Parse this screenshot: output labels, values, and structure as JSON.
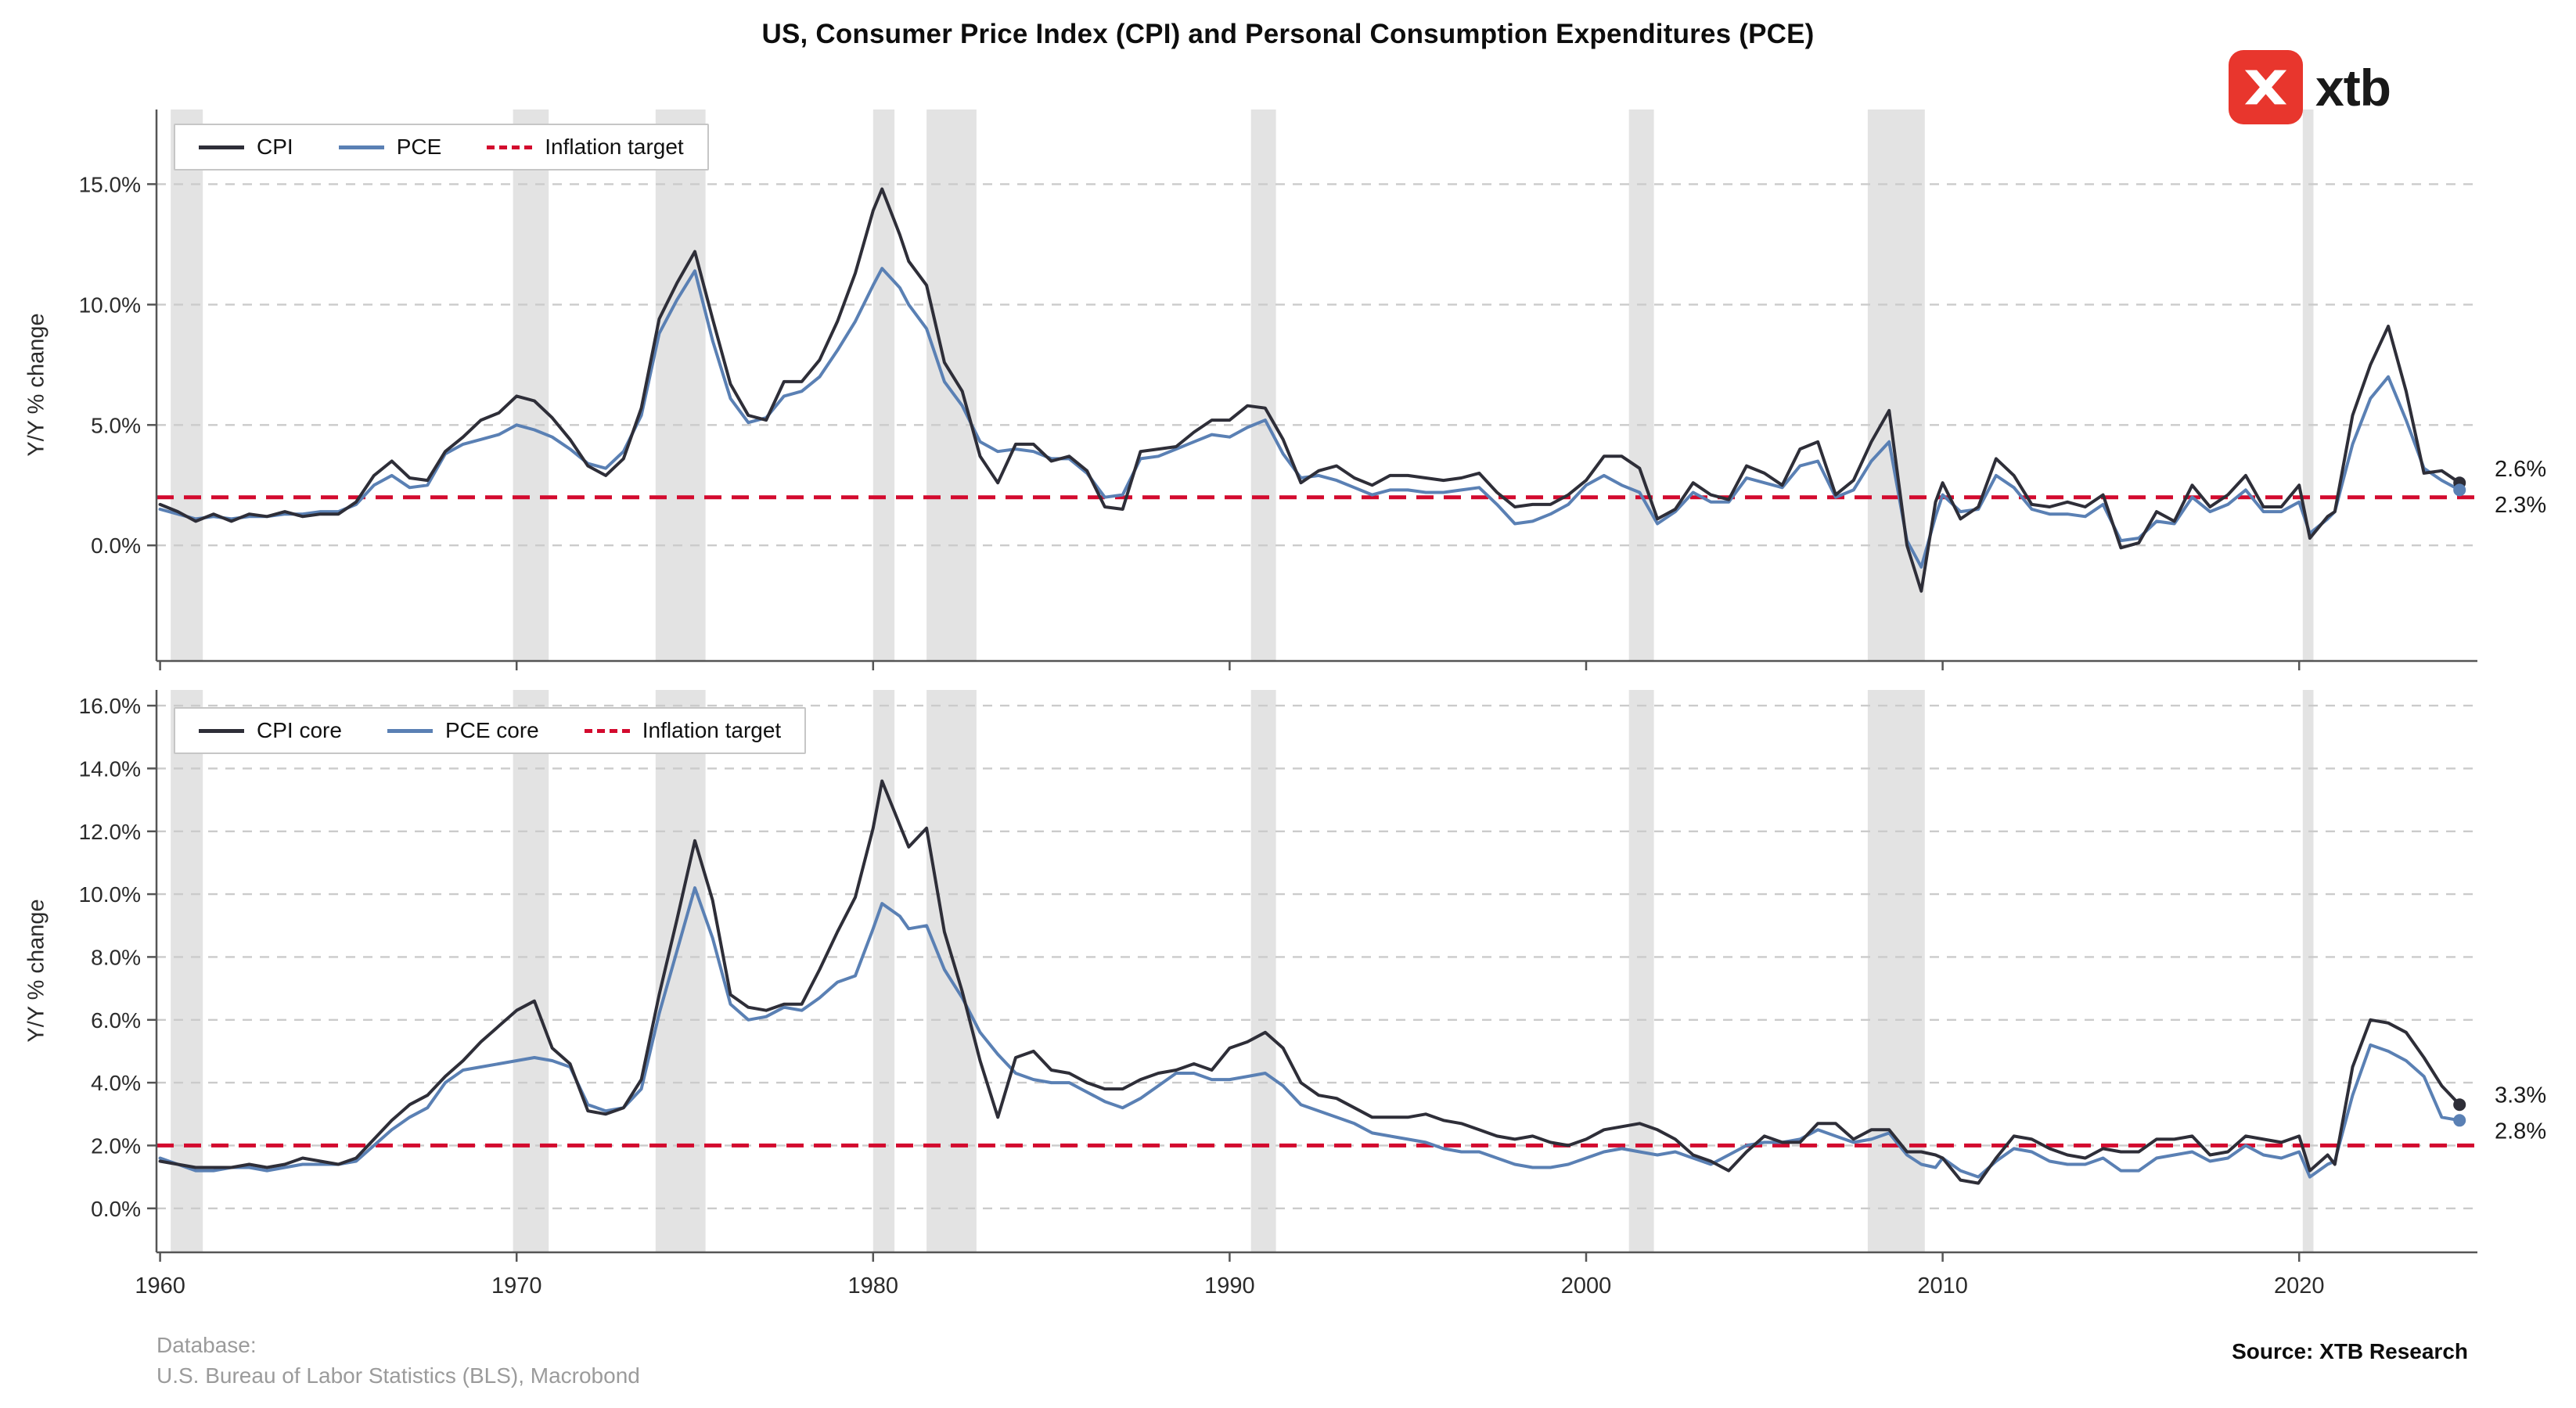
{
  "header": {
    "title": "US, Consumer Price Index (CPI) and Personal Consumption Expenditures (PCE)",
    "logo_text": "xtb"
  },
  "footer": {
    "database_label": "Database:",
    "database_value": "U.S. Bureau of Labor Statistics (BLS), Macrobond",
    "source": "Source: XTB Research"
  },
  "colors": {
    "cpi": "#2e2e38",
    "pce": "#5a80b4",
    "target": "#d30a2e",
    "recession": "#e3e3e3",
    "grid": "#cbcbcb",
    "axis": "#555555",
    "tick_text": "#2b2b2b",
    "logo_red": "#e8362d"
  },
  "x_axis": {
    "ticks": [
      1960,
      1970,
      1980,
      1990,
      2000,
      2010,
      2020
    ],
    "xlim": [
      1959.9,
      2025
    ]
  },
  "recession_bands": [
    [
      1960.3,
      1961.2
    ],
    [
      1969.9,
      1970.9
    ],
    [
      1973.9,
      1975.3
    ],
    [
      1980.0,
      1980.6
    ],
    [
      1981.5,
      1982.9
    ],
    [
      1990.6,
      1991.3
    ],
    [
      2001.2,
      2001.9
    ],
    [
      2007.9,
      2009.5
    ],
    [
      2020.1,
      2020.4
    ]
  ],
  "chart_data": [
    {
      "type": "line",
      "title": "",
      "ylabel": "Y/Y % change",
      "ylim": [
        -4.8,
        18.1
      ],
      "yticks": [
        0,
        5,
        10,
        15
      ],
      "ytick_suffix": "%",
      "grid": true,
      "legend_position": "top-left",
      "legend": [
        "CPI",
        "PCE",
        "Inflation target"
      ],
      "target_value": 2,
      "end_labels": [
        "2.6%",
        "2.3%"
      ],
      "x": [
        1960,
        1960.5,
        1961,
        1961.5,
        1962,
        1962.5,
        1963,
        1963.5,
        1964,
        1964.5,
        1965,
        1965.5,
        1966,
        1966.5,
        1967,
        1967.5,
        1968,
        1968.5,
        1969,
        1969.5,
        1970,
        1970.5,
        1971,
        1971.5,
        1972,
        1972.5,
        1973,
        1973.5,
        1974,
        1974.5,
        1975,
        1975.5,
        1976,
        1976.5,
        1977,
        1977.5,
        1978,
        1978.5,
        1979,
        1979.5,
        1980,
        1980.25,
        1980.75,
        1981,
        1981.5,
        1982,
        1982.5,
        1983,
        1983.5,
        1984,
        1984.5,
        1985,
        1985.5,
        1986,
        1986.5,
        1987,
        1987.5,
        1988,
        1988.5,
        1989,
        1989.5,
        1990,
        1990.5,
        1991,
        1991.5,
        1992,
        1992.5,
        1993,
        1993.5,
        1994,
        1994.5,
        1995,
        1995.5,
        1996,
        1996.5,
        1997,
        1997.5,
        1998,
        1998.5,
        1999,
        1999.5,
        2000,
        2000.5,
        2001,
        2001.5,
        2002,
        2002.5,
        2003,
        2003.5,
        2004,
        2004.5,
        2005,
        2005.5,
        2006,
        2006.5,
        2007,
        2007.5,
        2008,
        2008.5,
        2009,
        2009.4,
        2009.8,
        2010,
        2010.5,
        2011,
        2011.5,
        2012,
        2012.5,
        2013,
        2013.5,
        2014,
        2014.5,
        2015,
        2015.5,
        2016,
        2016.5,
        2017,
        2017.5,
        2018,
        2018.5,
        2019,
        2019.5,
        2020,
        2020.3,
        2020.8,
        2021,
        2021.5,
        2022,
        2022.5,
        2023,
        2023.5,
        2024,
        2024.5
      ],
      "series": [
        {
          "name": "CPI",
          "color_key": "cpi",
          "values": [
            1.7,
            1.4,
            1.0,
            1.3,
            1.0,
            1.3,
            1.2,
            1.4,
            1.2,
            1.3,
            1.3,
            1.8,
            2.9,
            3.5,
            2.8,
            2.7,
            3.9,
            4.5,
            5.2,
            5.5,
            6.2,
            6.0,
            5.3,
            4.4,
            3.3,
            2.9,
            3.6,
            5.7,
            9.4,
            10.9,
            12.2,
            9.4,
            6.7,
            5.4,
            5.2,
            6.8,
            6.8,
            7.7,
            9.3,
            11.3,
            13.9,
            14.8,
            12.9,
            11.8,
            10.8,
            7.6,
            6.4,
            3.7,
            2.6,
            4.2,
            4.2,
            3.5,
            3.7,
            3.1,
            1.6,
            1.5,
            3.9,
            4.0,
            4.1,
            4.7,
            5.2,
            5.2,
            5.8,
            5.7,
            4.4,
            2.6,
            3.1,
            3.3,
            2.8,
            2.5,
            2.9,
            2.9,
            2.8,
            2.7,
            2.8,
            3.0,
            2.2,
            1.6,
            1.7,
            1.7,
            2.1,
            2.7,
            3.7,
            3.7,
            3.2,
            1.1,
            1.5,
            2.6,
            2.1,
            1.9,
            3.3,
            3.0,
            2.5,
            4.0,
            4.3,
            2.1,
            2.7,
            4.3,
            5.6,
            0.0,
            -1.9,
            1.8,
            2.6,
            1.1,
            1.6,
            3.6,
            2.9,
            1.7,
            1.6,
            1.8,
            1.6,
            2.1,
            -0.1,
            0.1,
            1.4,
            1.0,
            2.5,
            1.6,
            2.1,
            2.9,
            1.6,
            1.6,
            2.5,
            0.3,
            1.2,
            1.4,
            5.4,
            7.5,
            9.1,
            6.4,
            3.0,
            3.1,
            2.6
          ]
        },
        {
          "name": "PCE",
          "color_key": "pce",
          "values": [
            1.5,
            1.3,
            1.1,
            1.2,
            1.1,
            1.2,
            1.2,
            1.3,
            1.3,
            1.4,
            1.4,
            1.7,
            2.5,
            2.9,
            2.4,
            2.5,
            3.8,
            4.2,
            4.4,
            4.6,
            5.0,
            4.8,
            4.5,
            4.0,
            3.4,
            3.2,
            3.9,
            5.4,
            8.8,
            10.2,
            11.4,
            8.5,
            6.1,
            5.1,
            5.3,
            6.2,
            6.4,
            7.0,
            8.1,
            9.3,
            10.8,
            11.5,
            10.7,
            10.0,
            9.0,
            6.8,
            5.8,
            4.3,
            3.9,
            4.0,
            3.9,
            3.6,
            3.6,
            3.0,
            2.0,
            2.1,
            3.6,
            3.7,
            4.0,
            4.3,
            4.6,
            4.5,
            4.9,
            5.2,
            3.8,
            2.8,
            2.9,
            2.7,
            2.4,
            2.1,
            2.3,
            2.3,
            2.2,
            2.2,
            2.3,
            2.4,
            1.7,
            0.9,
            1.0,
            1.3,
            1.7,
            2.5,
            2.9,
            2.5,
            2.2,
            0.9,
            1.4,
            2.2,
            1.8,
            1.8,
            2.8,
            2.6,
            2.4,
            3.3,
            3.5,
            2.0,
            2.3,
            3.5,
            4.3,
            0.2,
            -0.9,
            1.2,
            2.1,
            1.4,
            1.5,
            2.9,
            2.4,
            1.5,
            1.3,
            1.3,
            1.2,
            1.7,
            0.2,
            0.3,
            1.0,
            0.9,
            2.0,
            1.4,
            1.7,
            2.3,
            1.4,
            1.4,
            1.8,
            0.5,
            1.1,
            1.4,
            4.2,
            6.1,
            7.0,
            5.2,
            3.2,
            2.7,
            2.3
          ]
        }
      ]
    },
    {
      "type": "line",
      "title": "",
      "ylabel": "Y/Y % change",
      "ylim": [
        -1.4,
        16.5
      ],
      "yticks": [
        0,
        2,
        4,
        6,
        8,
        10,
        12,
        14,
        16
      ],
      "ytick_suffix": "%",
      "grid": true,
      "legend_position": "top-left",
      "legend": [
        "CPI core",
        "PCE core",
        "Inflation target"
      ],
      "target_value": 2,
      "end_labels": [
        "3.3%",
        "2.8%"
      ],
      "x": [
        1960,
        1960.5,
        1961,
        1961.5,
        1962,
        1962.5,
        1963,
        1963.5,
        1964,
        1964.5,
        1965,
        1965.5,
        1966,
        1966.5,
        1967,
        1967.5,
        1968,
        1968.5,
        1969,
        1969.5,
        1970,
        1970.5,
        1971,
        1971.5,
        1972,
        1972.5,
        1973,
        1973.5,
        1974,
        1974.5,
        1975,
        1975.5,
        1976,
        1976.5,
        1977,
        1977.5,
        1978,
        1978.5,
        1979,
        1979.5,
        1980,
        1980.25,
        1980.75,
        1981,
        1981.5,
        1982,
        1982.5,
        1983,
        1983.5,
        1984,
        1984.5,
        1985,
        1985.5,
        1986,
        1986.5,
        1987,
        1987.5,
        1988,
        1988.5,
        1989,
        1989.5,
        1990,
        1990.5,
        1991,
        1991.5,
        1992,
        1992.5,
        1993,
        1993.5,
        1994,
        1994.5,
        1995,
        1995.5,
        1996,
        1996.5,
        1997,
        1997.5,
        1998,
        1998.5,
        1999,
        1999.5,
        2000,
        2000.5,
        2001,
        2001.5,
        2002,
        2002.5,
        2003,
        2003.5,
        2004,
        2004.5,
        2005,
        2005.5,
        2006,
        2006.5,
        2007,
        2007.5,
        2008,
        2008.5,
        2009,
        2009.4,
        2009.8,
        2010,
        2010.5,
        2011,
        2011.5,
        2012,
        2012.5,
        2013,
        2013.5,
        2014,
        2014.5,
        2015,
        2015.5,
        2016,
        2016.5,
        2017,
        2017.5,
        2018,
        2018.5,
        2019,
        2019.5,
        2020,
        2020.3,
        2020.8,
        2021,
        2021.5,
        2022,
        2022.5,
        2023,
        2023.5,
        2024,
        2024.5
      ],
      "series": [
        {
          "name": "CPI core",
          "color_key": "cpi",
          "values": [
            1.5,
            1.4,
            1.3,
            1.3,
            1.3,
            1.4,
            1.3,
            1.4,
            1.6,
            1.5,
            1.4,
            1.6,
            2.2,
            2.8,
            3.3,
            3.6,
            4.2,
            4.7,
            5.3,
            5.8,
            6.3,
            6.6,
            5.1,
            4.6,
            3.1,
            3.0,
            3.2,
            4.1,
            6.8,
            9.2,
            11.7,
            9.8,
            6.8,
            6.4,
            6.3,
            6.5,
            6.5,
            7.6,
            8.8,
            9.9,
            12.1,
            13.6,
            12.2,
            11.5,
            12.1,
            8.8,
            6.9,
            4.7,
            2.9,
            4.8,
            5.0,
            4.4,
            4.3,
            4.0,
            3.8,
            3.8,
            4.1,
            4.3,
            4.4,
            4.6,
            4.4,
            5.1,
            5.3,
            5.6,
            5.1,
            4.0,
            3.6,
            3.5,
            3.2,
            2.9,
            2.9,
            2.9,
            3.0,
            2.8,
            2.7,
            2.5,
            2.3,
            2.2,
            2.3,
            2.1,
            2.0,
            2.2,
            2.5,
            2.6,
            2.7,
            2.5,
            2.2,
            1.7,
            1.5,
            1.2,
            1.8,
            2.3,
            2.1,
            2.1,
            2.7,
            2.7,
            2.2,
            2.5,
            2.5,
            1.8,
            1.8,
            1.7,
            1.6,
            0.9,
            0.8,
            1.6,
            2.3,
            2.2,
            1.9,
            1.7,
            1.6,
            1.9,
            1.8,
            1.8,
            2.2,
            2.2,
            2.3,
            1.7,
            1.8,
            2.3,
            2.2,
            2.1,
            2.3,
            1.2,
            1.7,
            1.4,
            4.5,
            6.0,
            5.9,
            5.6,
            4.8,
            3.9,
            3.3
          ]
        },
        {
          "name": "PCE core",
          "color_key": "pce",
          "values": [
            1.6,
            1.4,
            1.2,
            1.2,
            1.3,
            1.3,
            1.2,
            1.3,
            1.4,
            1.4,
            1.4,
            1.5,
            2.0,
            2.5,
            2.9,
            3.2,
            4.0,
            4.4,
            4.5,
            4.6,
            4.7,
            4.8,
            4.7,
            4.5,
            3.3,
            3.1,
            3.2,
            3.8,
            6.2,
            8.2,
            10.2,
            8.6,
            6.5,
            6.0,
            6.1,
            6.4,
            6.3,
            6.7,
            7.2,
            7.4,
            8.9,
            9.7,
            9.3,
            8.9,
            9.0,
            7.6,
            6.7,
            5.6,
            4.9,
            4.3,
            4.1,
            4.0,
            4.0,
            3.7,
            3.4,
            3.2,
            3.5,
            3.9,
            4.3,
            4.3,
            4.1,
            4.1,
            4.2,
            4.3,
            3.9,
            3.3,
            3.1,
            2.9,
            2.7,
            2.4,
            2.3,
            2.2,
            2.1,
            1.9,
            1.8,
            1.8,
            1.6,
            1.4,
            1.3,
            1.3,
            1.4,
            1.6,
            1.8,
            1.9,
            1.8,
            1.7,
            1.8,
            1.6,
            1.4,
            1.7,
            2.0,
            2.1,
            2.1,
            2.2,
            2.5,
            2.3,
            2.1,
            2.2,
            2.4,
            1.7,
            1.4,
            1.3,
            1.6,
            1.2,
            1.0,
            1.5,
            1.9,
            1.8,
            1.5,
            1.4,
            1.4,
            1.6,
            1.2,
            1.2,
            1.6,
            1.7,
            1.8,
            1.5,
            1.6,
            2.0,
            1.7,
            1.6,
            1.8,
            1.0,
            1.4,
            1.5,
            3.6,
            5.2,
            5.0,
            4.7,
            4.2,
            2.9,
            2.8
          ]
        }
      ]
    }
  ]
}
